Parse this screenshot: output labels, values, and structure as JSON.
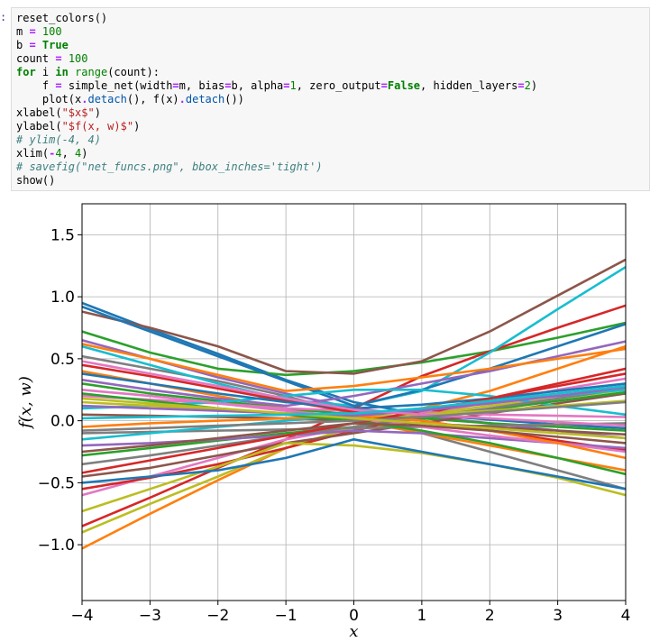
{
  "cell": {
    "prompt": ":",
    "code_lines": [
      [
        [
          "plain",
          "reset_colors()"
        ]
      ],
      [
        [
          "plain",
          "m "
        ],
        [
          "op",
          "="
        ],
        [
          "plain",
          " "
        ],
        [
          "num",
          "100"
        ]
      ],
      [
        [
          "plain",
          "b "
        ],
        [
          "op",
          "="
        ],
        [
          "plain",
          " "
        ],
        [
          "kw",
          "True"
        ]
      ],
      [
        [
          "plain",
          "count "
        ],
        [
          "op",
          "="
        ],
        [
          "plain",
          " "
        ],
        [
          "num",
          "100"
        ]
      ],
      [
        [
          "kw",
          "for"
        ],
        [
          "plain",
          " i "
        ],
        [
          "kw",
          "in"
        ],
        [
          "plain",
          " "
        ],
        [
          "bi",
          "range"
        ],
        [
          "plain",
          "(count):"
        ]
      ],
      [
        [
          "plain",
          "    f "
        ],
        [
          "op",
          "="
        ],
        [
          "plain",
          " simple_net(width"
        ],
        [
          "op",
          "="
        ],
        [
          "plain",
          "m, bias"
        ],
        [
          "op",
          "="
        ],
        [
          "plain",
          "b, alpha"
        ],
        [
          "op",
          "="
        ],
        [
          "num",
          "1"
        ],
        [
          "plain",
          ", zero_output"
        ],
        [
          "op",
          "="
        ],
        [
          "kw",
          "False"
        ],
        [
          "plain",
          ", hidden_layers"
        ],
        [
          "op",
          "="
        ],
        [
          "num",
          "2"
        ],
        [
          "plain",
          ")"
        ]
      ],
      [
        [
          "plain",
          "    plot(x"
        ],
        [
          "op",
          "."
        ],
        [
          "at",
          "detach"
        ],
        [
          "plain",
          "(), f(x)"
        ],
        [
          "op",
          "."
        ],
        [
          "at",
          "detach"
        ],
        [
          "plain",
          "())"
        ]
      ],
      [
        [
          "plain",
          "xlabel("
        ],
        [
          "str",
          "\"$x$\""
        ],
        [
          "plain",
          ")"
        ]
      ],
      [
        [
          "plain",
          "ylabel("
        ],
        [
          "str",
          "\"$f(x, w)$\""
        ],
        [
          "plain",
          ")"
        ]
      ],
      [
        [
          "cm",
          "# ylim(-4, 4)"
        ]
      ],
      [
        [
          "plain",
          "xlim("
        ],
        [
          "op",
          "-"
        ],
        [
          "num",
          "4"
        ],
        [
          "plain",
          ", "
        ],
        [
          "num",
          "4"
        ],
        [
          "plain",
          ")"
        ]
      ],
      [
        [
          "cm",
          "# savefig(\"net_funcs.png\", bbox_inches='tight')"
        ]
      ],
      [
        [
          "plain",
          "show()"
        ]
      ]
    ]
  },
  "chart_data": {
    "type": "line",
    "title": "",
    "xlabel": "x",
    "ylabel": "f(x, w)",
    "xlim": [
      -4,
      4
    ],
    "ylim": [
      -1.45,
      1.75
    ],
    "xticks": [
      -4,
      -3,
      -2,
      -1,
      0,
      1,
      2,
      3,
      4
    ],
    "xtick_labels": [
      "−4",
      "−3",
      "−2",
      "−1",
      "0",
      "1",
      "2",
      "3",
      "4"
    ],
    "yticks": [
      -1.0,
      -0.5,
      0.0,
      0.5,
      1.0,
      1.5
    ],
    "ytick_labels": [
      "−1.0",
      "−0.5",
      "0.0",
      "0.5",
      "1.0",
      "1.5"
    ],
    "grid": true,
    "x": [
      -4,
      -3,
      -2,
      -1,
      0,
      1,
      2,
      3,
      4
    ],
    "palette": [
      "#1f77b4",
      "#ff7f0e",
      "#2ca02c",
      "#d62728",
      "#9467bd",
      "#8c564b",
      "#e377c2",
      "#7f7f7f",
      "#bcbd22",
      "#17becf"
    ],
    "series": [
      {
        "values": [
          0.95,
          0.74,
          0.54,
          0.33,
          0.15,
          0.05,
          0.01,
          -0.03,
          -0.06
        ]
      },
      {
        "values": [
          -1.03,
          -0.75,
          -0.48,
          -0.22,
          -0.05,
          0.1,
          0.24,
          0.42,
          0.6
        ]
      },
      {
        "values": [
          0.72,
          0.55,
          0.42,
          0.37,
          0.4,
          0.47,
          0.56,
          0.67,
          0.79
        ]
      },
      {
        "values": [
          -0.85,
          -0.62,
          -0.38,
          -0.15,
          0.1,
          0.36,
          0.56,
          0.75,
          0.93
        ]
      },
      {
        "values": [
          0.65,
          0.5,
          0.35,
          0.22,
          0.1,
          0.04,
          -0.02,
          -0.08,
          -0.14
        ]
      },
      {
        "values": [
          0.88,
          0.75,
          0.6,
          0.4,
          0.38,
          0.48,
          0.72,
          1.01,
          1.3
        ]
      },
      {
        "values": [
          -0.6,
          -0.45,
          -0.3,
          -0.15,
          -0.05,
          0.05,
          0.15,
          0.25,
          0.34
        ]
      },
      {
        "values": [
          0.52,
          0.42,
          0.32,
          0.2,
          0.05,
          -0.1,
          -0.25,
          -0.4,
          -0.55
        ]
      },
      {
        "values": [
          -0.9,
          -0.67,
          -0.45,
          -0.22,
          -0.05,
          0.05,
          0.12,
          0.18,
          0.25
        ]
      },
      {
        "values": [
          0.6,
          0.45,
          0.3,
          0.17,
          0.12,
          0.24,
          0.55,
          0.9,
          1.24
        ]
      },
      {
        "values": [
          0.92,
          0.72,
          0.52,
          0.32,
          0.12,
          0.25,
          0.42,
          0.6,
          0.78
        ]
      },
      {
        "values": [
          0.4,
          0.3,
          0.2,
          0.1,
          0.0,
          -0.1,
          -0.2,
          -0.3,
          -0.4
        ]
      },
      {
        "values": [
          0.3,
          0.22,
          0.16,
          0.1,
          0.05,
          0.02,
          -0.02,
          -0.05,
          -0.08
        ]
      },
      {
        "values": [
          -0.55,
          -0.46,
          -0.35,
          -0.22,
          -0.08,
          0.05,
          0.18,
          0.3,
          0.42
        ]
      },
      {
        "values": [
          0.33,
          0.25,
          0.18,
          0.12,
          0.2,
          0.3,
          0.4,
          0.52,
          0.64
        ]
      },
      {
        "values": [
          -0.45,
          -0.38,
          -0.28,
          -0.18,
          -0.1,
          -0.02,
          0.06,
          0.14,
          0.22
        ]
      },
      {
        "values": [
          0.2,
          0.17,
          0.14,
          0.1,
          0.08,
          0.07,
          0.05,
          0.04,
          0.03
        ]
      },
      {
        "values": [
          -0.1,
          -0.09,
          -0.08,
          -0.07,
          -0.06,
          -0.05,
          -0.04,
          -0.03,
          -0.02
        ]
      },
      {
        "values": [
          -0.73,
          -0.55,
          -0.37,
          -0.18,
          -0.2,
          -0.26,
          -0.35,
          -0.46,
          -0.6
        ]
      },
      {
        "values": [
          0.1,
          0.12,
          0.15,
          0.2,
          0.25,
          0.25,
          0.2,
          0.12,
          0.05
        ]
      },
      {
        "values": [
          -0.5,
          -0.45,
          -0.4,
          -0.3,
          -0.15,
          -0.25,
          -0.35,
          -0.45,
          -0.55
        ]
      },
      {
        "values": [
          0.62,
          0.5,
          0.37,
          0.24,
          0.28,
          0.35,
          0.42,
          0.5,
          0.58
        ]
      },
      {
        "values": [
          -0.28,
          -0.22,
          -0.16,
          -0.1,
          -0.05,
          0.02,
          0.09,
          0.16,
          0.23
        ]
      },
      {
        "values": [
          0.45,
          0.36,
          0.26,
          0.16,
          0.07,
          0.0,
          -0.08,
          -0.16,
          -0.24
        ]
      },
      {
        "values": [
          -0.2,
          -0.18,
          -0.15,
          -0.12,
          -0.08,
          -0.1,
          -0.14,
          -0.18,
          -0.22
        ]
      },
      {
        "values": [
          0.05,
          0.04,
          0.03,
          0.02,
          0.0,
          -0.02,
          -0.05,
          -0.08,
          -0.11
        ]
      },
      {
        "values": [
          0.25,
          0.2,
          0.14,
          0.08,
          0.02,
          -0.05,
          -0.12,
          -0.18,
          -0.25
        ]
      },
      {
        "values": [
          -0.35,
          -0.28,
          -0.2,
          -0.12,
          -0.05,
          0.03,
          0.1,
          0.18,
          0.26
        ]
      },
      {
        "values": [
          0.15,
          0.12,
          0.09,
          0.06,
          0.03,
          0.05,
          0.08,
          0.12,
          0.16
        ]
      },
      {
        "values": [
          -0.15,
          -0.1,
          -0.05,
          0.0,
          0.05,
          0.1,
          0.15,
          0.2,
          0.25
        ]
      },
      {
        "values": [
          0.38,
          0.3,
          0.22,
          0.15,
          0.1,
          0.13,
          0.18,
          0.24,
          0.3
        ]
      },
      {
        "values": [
          -0.05,
          -0.02,
          0.0,
          0.02,
          0.04,
          0.0,
          -0.08,
          -0.18,
          -0.3
        ]
      },
      {
        "values": [
          0.22,
          0.16,
          0.1,
          0.05,
          0.0,
          -0.08,
          -0.18,
          -0.3,
          -0.43
        ]
      },
      {
        "values": [
          -0.42,
          -0.32,
          -0.22,
          -0.12,
          -0.02,
          0.08,
          0.18,
          0.28,
          0.38
        ]
      },
      {
        "values": [
          0.12,
          0.1,
          0.08,
          0.06,
          0.04,
          0.08,
          0.14,
          0.2,
          0.27
        ]
      },
      {
        "values": [
          -0.25,
          -0.2,
          -0.14,
          -0.08,
          -0.02,
          -0.04,
          -0.08,
          -0.13,
          -0.18
        ]
      },
      {
        "values": [
          0.48,
          0.38,
          0.28,
          0.18,
          0.09,
          0.05,
          0.02,
          -0.01,
          -0.04
        ]
      },
      {
        "values": [
          -0.08,
          -0.06,
          -0.04,
          -0.02,
          0.0,
          0.03,
          0.07,
          0.11,
          0.15
        ]
      },
      {
        "values": [
          0.18,
          0.14,
          0.1,
          0.06,
          0.02,
          -0.02,
          -0.06,
          -0.1,
          -0.14
        ]
      },
      {
        "values": [
          0.02,
          0.03,
          0.04,
          0.05,
          0.06,
          0.1,
          0.16,
          0.22,
          0.28
        ]
      }
    ]
  }
}
